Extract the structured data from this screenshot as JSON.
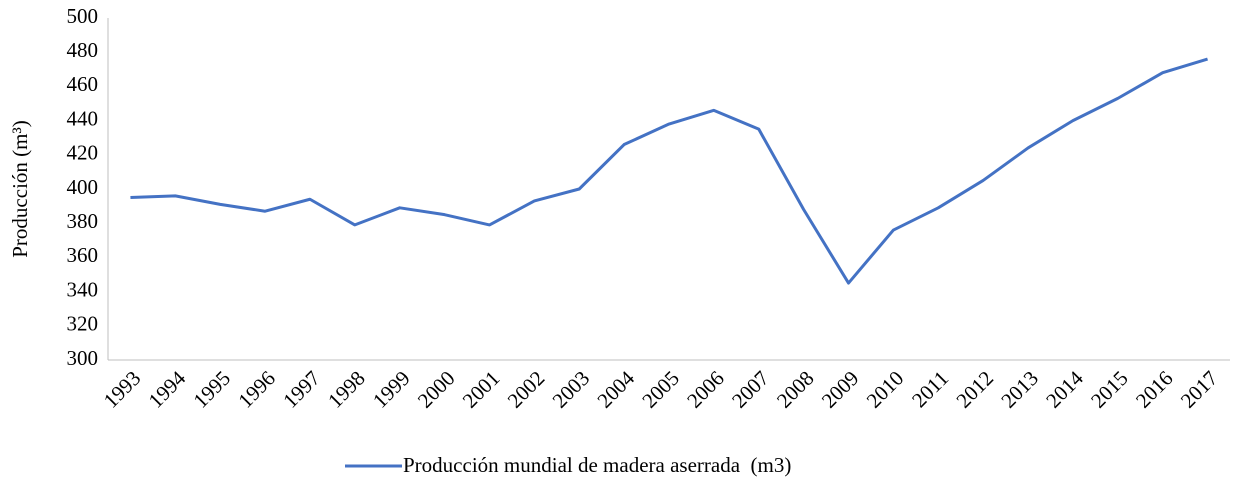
{
  "chart_data": {
    "type": "line",
    "y_label": "Producción (m³)",
    "categories": [
      "1993",
      "1994",
      "1995",
      "1996",
      "1997",
      "1998",
      "1999",
      "2000",
      "2001",
      "2002",
      "2003",
      "2004",
      "2005",
      "2006",
      "2007",
      "2008",
      "2009",
      "2010",
      "2011",
      "2012",
      "2013",
      "2014",
      "2015",
      "2016",
      "2017"
    ],
    "series": [
      {
        "name": "Producción mundial de madera aserrada  (m3)",
        "color": "#4472c4",
        "values": [
          395,
          396,
          391,
          387,
          394,
          379,
          389,
          385,
          379,
          393,
          400,
          426,
          438,
          446,
          435,
          388,
          345,
          376,
          389,
          405,
          424,
          440,
          453,
          468,
          476
        ]
      }
    ],
    "ylim": [
      300,
      500
    ],
    "yticks": [
      300,
      320,
      340,
      360,
      380,
      400,
      420,
      440,
      460,
      480,
      500
    ],
    "grid": false,
    "legend": "bottom"
  }
}
